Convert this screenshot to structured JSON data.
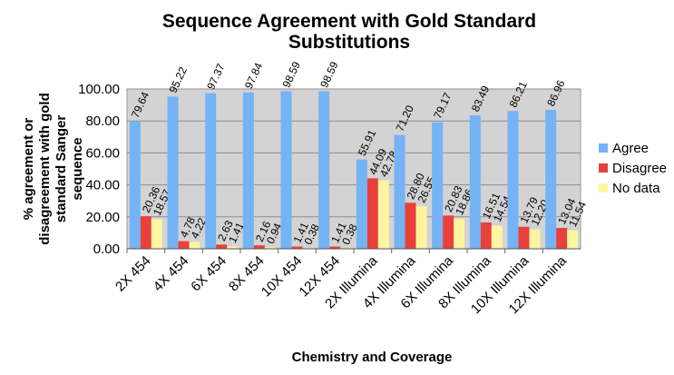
{
  "chart_data": {
    "type": "bar",
    "title": [
      "Sequence Agreement with Gold Standard",
      "Substitutions"
    ],
    "xlabel": "Chemistry and Coverage",
    "ylabel": [
      "% agreement or",
      "disagreement with gold",
      "standard Sanger",
      "sequence"
    ],
    "categories": [
      "2X 454",
      "4X 454",
      "6X 454",
      "8X 454",
      "10X 454",
      "12X 454",
      "2X Illumina",
      "4X Illumina",
      "6X Illumina",
      "8X Illumina",
      "10X Illumina",
      "12X Illumina"
    ],
    "series": [
      {
        "name": "Agree",
        "color": "#74b3f5",
        "values": [
          79.64,
          95.22,
          97.37,
          97.84,
          98.59,
          98.59,
          55.91,
          71.2,
          79.17,
          83.49,
          86.21,
          86.96
        ],
        "value_labels": [
          "79.64",
          "95.22",
          "97.37",
          "97.84",
          "98.59",
          "98.59",
          "55.91",
          "71.20",
          "79.17",
          "83.49",
          "86.21",
          "86.96"
        ]
      },
      {
        "name": "Disagree",
        "color": "#e8403b",
        "values": [
          20.36,
          4.78,
          2.63,
          2.16,
          1.41,
          1.41,
          44.09,
          28.8,
          20.83,
          16.51,
          13.79,
          13.04
        ],
        "value_labels": [
          "20.36",
          "4.78",
          "2.63",
          "2.16",
          "1.41",
          "1.41",
          "44.09",
          "28.80",
          "20.83",
          "16.51",
          "13.79",
          "13.04"
        ]
      },
      {
        "name": "No data",
        "color": "#fdf5a0",
        "values": [
          18.57,
          4.22,
          1.41,
          0.94,
          0.38,
          0.38,
          42.78,
          26.55,
          18.86,
          14.54,
          12.2,
          11.54
        ],
        "value_labels": [
          "18.57",
          "4.22",
          "1.41",
          "0.94",
          "0.38",
          "0.38",
          "42.78",
          "26.55",
          "18.86",
          "14.54",
          "12.20",
          "11.54"
        ]
      }
    ],
    "ylim": [
      0,
      100
    ],
    "yticks": [
      {
        "value": 0,
        "label": "0.00"
      },
      {
        "value": 20,
        "label": "20.00"
      },
      {
        "value": 40,
        "label": "40.00"
      },
      {
        "value": 60,
        "label": "60.00"
      },
      {
        "value": 80,
        "label": "80.00"
      },
      {
        "value": 100,
        "label": "100.00"
      }
    ],
    "grid": true,
    "legend": "right"
  }
}
